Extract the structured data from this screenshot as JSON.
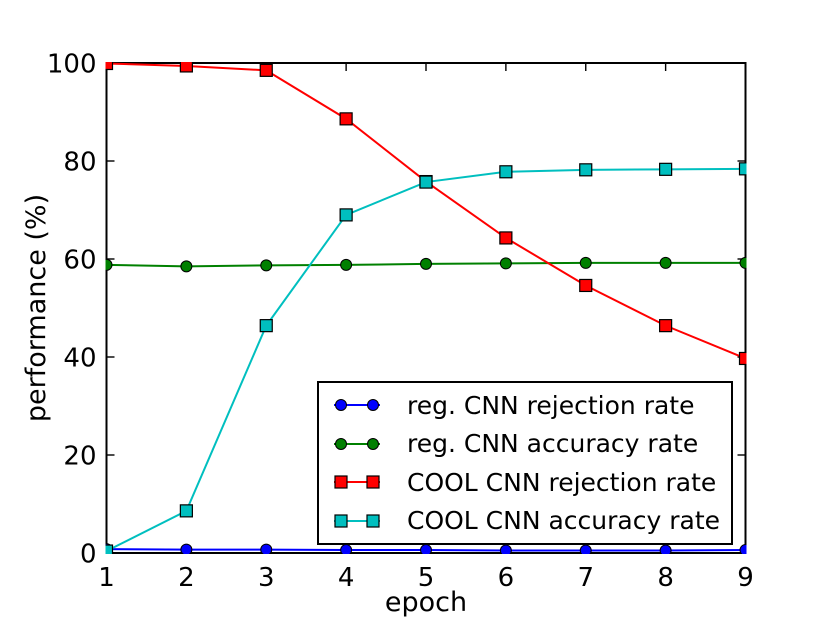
{
  "figure": {
    "background": "#ffffff",
    "frame_color": "#000000",
    "tick_color": "#000000",
    "text_color": "#000000",
    "legend_border_color": "#000000"
  },
  "chart_data": {
    "type": "line",
    "title": "",
    "xlabel": "epoch",
    "ylabel": "performance (%)",
    "xlim": [
      1,
      9
    ],
    "ylim": [
      0,
      100
    ],
    "xticks": [
      1,
      2,
      3,
      4,
      5,
      6,
      7,
      8,
      9
    ],
    "yticks": [
      0,
      20,
      40,
      60,
      80,
      100
    ],
    "grid": false,
    "legend_position": "inside lower right",
    "x": [
      1,
      2,
      3,
      4,
      5,
      6,
      7,
      8,
      9
    ],
    "series": [
      {
        "name": "reg. CNN rejection rate",
        "color": "#0000ff",
        "marker": "circle",
        "values": [
          0.8,
          0.7,
          0.7,
          0.6,
          0.6,
          0.5,
          0.5,
          0.5,
          0.6
        ]
      },
      {
        "name": "reg. CNN accuracy rate",
        "color": "#008000",
        "marker": "circle",
        "values": [
          58.8,
          58.5,
          58.7,
          58.8,
          59.0,
          59.1,
          59.2,
          59.2,
          59.2
        ]
      },
      {
        "name": "COOL CNN rejection rate",
        "color": "#ff0000",
        "marker": "square",
        "values": [
          99.9,
          99.4,
          98.5,
          88.6,
          75.8,
          64.3,
          54.6,
          46.4,
          39.7
        ]
      },
      {
        "name": "COOL CNN accuracy rate",
        "color": "#00bfbf",
        "marker": "square",
        "values": [
          0.4,
          8.6,
          46.4,
          69.0,
          75.7,
          77.8,
          78.2,
          78.3,
          78.4
        ]
      }
    ]
  }
}
